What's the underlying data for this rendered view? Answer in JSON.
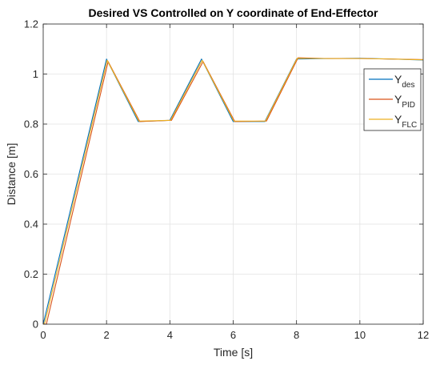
{
  "chart_data": {
    "type": "line",
    "title": "Desired VS Controlled on Y coordinate of End-Effector",
    "xlabel": "Time [s]",
    "ylabel": "Distance [m]",
    "xlim": [
      0,
      12
    ],
    "ylim": [
      0,
      1.2
    ],
    "xticks": [
      0,
      2,
      4,
      6,
      8,
      10,
      12
    ],
    "yticks": [
      0,
      0.2,
      0.4,
      0.6,
      0.8,
      1,
      1.2
    ],
    "xtick_labels": [
      "0",
      "2",
      "4",
      "6",
      "8",
      "10",
      "12"
    ],
    "ytick_labels": [
      "0",
      "0.2",
      "0.4",
      "0.6",
      "0.8",
      "1",
      "1.2"
    ],
    "grid": true,
    "legend_position": "top-right",
    "series": [
      {
        "name": "Y_des",
        "label_main": "Y",
        "label_sub": "des",
        "color": "#0072BD",
        "x": [
          0,
          2,
          3,
          4,
          5,
          6,
          7,
          8,
          9,
          10,
          11,
          12
        ],
        "y": [
          0,
          1.06,
          0.81,
          0.815,
          1.06,
          0.81,
          0.81,
          1.06,
          1.062,
          1.063,
          1.06,
          1.056
        ]
      },
      {
        "name": "Y_PID",
        "label_main": "Y",
        "label_sub": "PID",
        "color": "#D95319",
        "x": [
          0,
          0.1,
          2.05,
          3.05,
          4.05,
          5.05,
          6.05,
          7.05,
          8.05,
          9,
          10,
          11,
          12
        ],
        "y": [
          0,
          0,
          1.05,
          0.81,
          0.815,
          1.05,
          0.81,
          0.812,
          1.065,
          1.062,
          1.062,
          1.06,
          1.058
        ]
      },
      {
        "name": "Y_FLC",
        "label_main": "Y",
        "label_sub": "FLC",
        "color": "#EDB120",
        "x": [
          0,
          0.05,
          2.02,
          3.02,
          4.02,
          5.02,
          6.02,
          7.02,
          8.02,
          9,
          10,
          11,
          12
        ],
        "y": [
          0,
          0.005,
          1.055,
          0.812,
          0.815,
          1.055,
          0.812,
          0.812,
          1.063,
          1.062,
          1.062,
          1.06,
          1.057
        ]
      }
    ]
  }
}
